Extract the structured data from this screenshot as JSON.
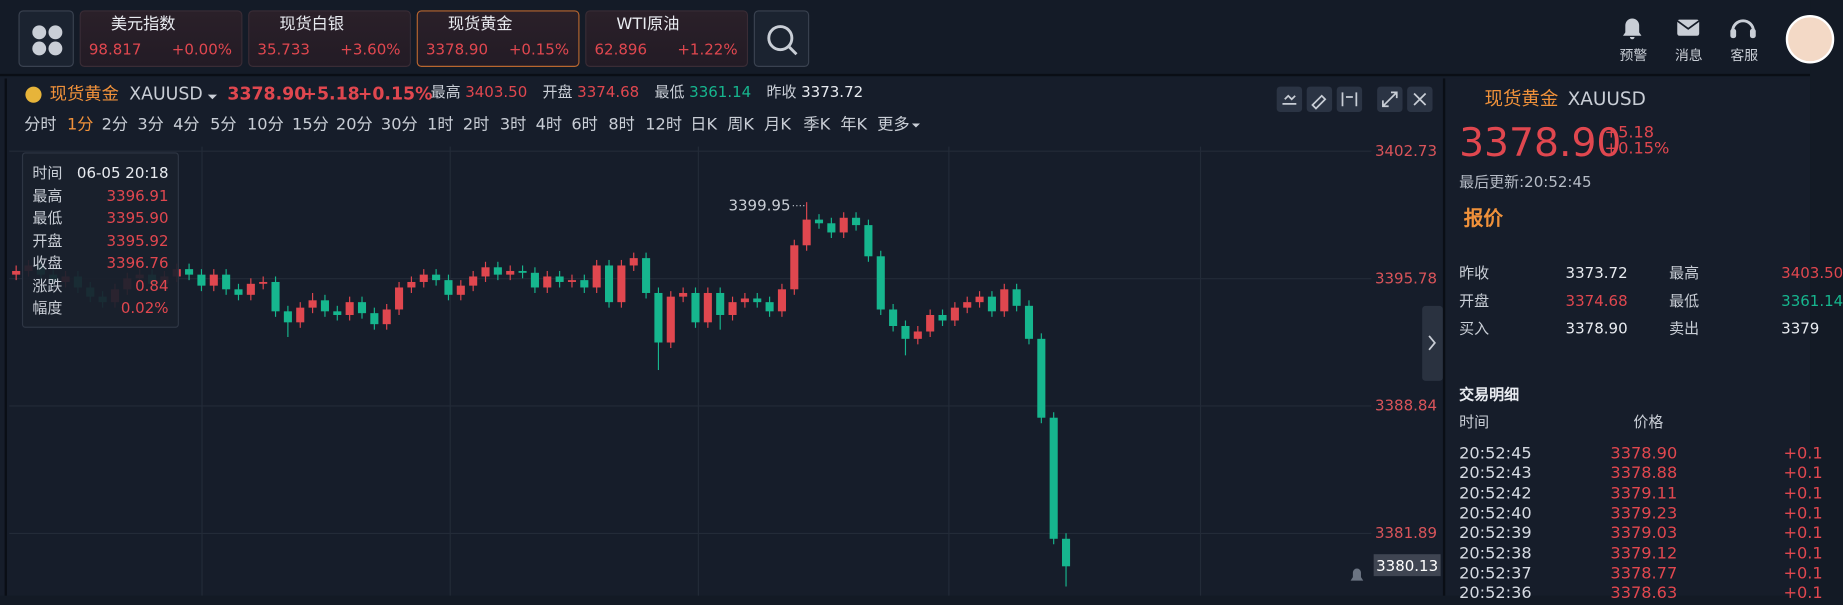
{
  "top_bar": {
    "tickers": [
      {
        "name": "美元指数",
        "price": "98.817",
        "change": "+0.00%"
      },
      {
        "name": "现货白银",
        "price": "35.733",
        "change": "+3.60%"
      },
      {
        "name": "现货黄金",
        "price": "3378.90",
        "change": "+0.15%"
      },
      {
        "name": "WTI原油",
        "price": "62.896",
        "change": "+1.22%"
      }
    ],
    "actions": [
      "预警",
      "消息",
      "客服"
    ]
  },
  "chart_header": {
    "name": "现货黄金",
    "code": "XAUUSD",
    "price": "3378.90",
    "change": "+5.18",
    "percent": "+0.15%",
    "stats": [
      {
        "label": "最高",
        "value": "3403.50"
      },
      {
        "label": "开盘",
        "value": "3374.68"
      },
      {
        "label": "最低",
        "value": "3361.14"
      },
      {
        "label": "昨收",
        "value": "3373.72"
      }
    ]
  },
  "periods": [
    "分时",
    "1分",
    "2分",
    "3分",
    "4分",
    "5分",
    "10分",
    "15分",
    "20分",
    "30分",
    "1时",
    "2时",
    "3时",
    "4时",
    "6时",
    "8时",
    "12时",
    "日K",
    "周K",
    "月K",
    "季K",
    "年K",
    "更多"
  ],
  "tooltip": [
    [
      "时间",
      "06-05 20:18"
    ],
    [
      "最高",
      "3396.91"
    ],
    [
      "最低",
      "3395.90"
    ],
    [
      "开盘",
      "3395.92"
    ],
    [
      "收盘",
      "3396.76"
    ],
    [
      "涨跌",
      "0.84"
    ],
    [
      "幅度",
      "0.02%"
    ]
  ],
  "chart_data": {
    "type": "candlestick",
    "up_color": "#e0474f",
    "down_color": "#16b68e",
    "ylim": [
      3378.5,
      3402.98
    ],
    "yticks": [
      3402.73,
      3395.78,
      3388.84,
      3381.89
    ],
    "grid": true,
    "max_label": "3399.95",
    "last_price": 3380.13,
    "candles": [
      [
        3396.0,
        3396.5,
        3395.7,
        3396.2
      ],
      [
        3396.2,
        3396.8,
        3395.9,
        3396.5
      ],
      [
        3396.5,
        3396.8,
        3395.7,
        3396.0
      ],
      [
        3396.0,
        3396.3,
        3395.3,
        3395.6
      ],
      [
        3395.6,
        3396.2,
        3395.3,
        3395.9
      ],
      [
        3395.9,
        3396.2,
        3395.0,
        3395.3
      ],
      [
        3395.3,
        3395.6,
        3394.5,
        3394.8
      ],
      [
        3394.8,
        3395.1,
        3394.2,
        3394.5
      ],
      [
        3394.5,
        3395.5,
        3394.2,
        3395.2
      ],
      [
        3395.2,
        3396.1,
        3394.9,
        3395.8
      ],
      [
        3395.8,
        3396.3,
        3395.5,
        3396.0
      ],
      [
        3396.0,
        3396.3,
        3395.2,
        3395.5
      ],
      [
        3395.5,
        3396.2,
        3395.2,
        3395.9
      ],
      [
        3395.9,
        3396.6,
        3395.6,
        3396.3
      ],
      [
        3396.3,
        3396.6,
        3395.7,
        3396.0
      ],
      [
        3396.0,
        3396.3,
        3395.1,
        3395.4
      ],
      [
        3395.4,
        3396.3,
        3395.1,
        3396.0
      ],
      [
        3396.0,
        3396.3,
        3394.9,
        3395.2
      ],
      [
        3395.2,
        3395.5,
        3394.6,
        3394.9
      ],
      [
        3394.9,
        3395.8,
        3394.6,
        3395.5
      ],
      [
        3395.5,
        3395.9,
        3395.2,
        3395.6
      ],
      [
        3395.6,
        3395.9,
        3393.7,
        3394.0
      ],
      [
        3394.0,
        3394.3,
        3392.6,
        3393.4
      ],
      [
        3393.4,
        3394.5,
        3393.1,
        3394.2
      ],
      [
        3394.2,
        3395.0,
        3393.9,
        3394.6
      ],
      [
        3394.6,
        3394.9,
        3393.7,
        3394.0
      ],
      [
        3394.0,
        3394.3,
        3393.5,
        3393.8
      ],
      [
        3393.8,
        3394.8,
        3393.5,
        3394.5
      ],
      [
        3394.5,
        3394.8,
        3393.6,
        3393.9
      ],
      [
        3393.9,
        3394.2,
        3393.0,
        3393.3
      ],
      [
        3393.3,
        3394.4,
        3393.0,
        3394.1
      ],
      [
        3394.1,
        3395.6,
        3393.8,
        3395.3
      ],
      [
        3395.3,
        3395.9,
        3395.0,
        3395.6
      ],
      [
        3395.6,
        3396.3,
        3395.3,
        3396.0
      ],
      [
        3396.0,
        3396.3,
        3395.4,
        3395.7
      ],
      [
        3395.7,
        3396.0,
        3394.6,
        3394.9
      ],
      [
        3394.9,
        3395.7,
        3394.6,
        3395.4
      ],
      [
        3395.4,
        3396.2,
        3395.1,
        3395.9
      ],
      [
        3395.9,
        3396.7,
        3395.6,
        3396.4
      ],
      [
        3396.4,
        3396.7,
        3395.7,
        3396.0
      ],
      [
        3396.0,
        3396.5,
        3395.7,
        3396.2
      ],
      [
        3396.2,
        3396.5,
        3395.8,
        3396.1
      ],
      [
        3396.1,
        3396.4,
        3395.0,
        3395.3
      ],
      [
        3395.3,
        3396.2,
        3395.0,
        3395.9
      ],
      [
        3395.9,
        3396.2,
        3395.3,
        3395.6
      ],
      [
        3395.6,
        3396.0,
        3395.3,
        3395.7
      ],
      [
        3395.7,
        3396.0,
        3395.0,
        3395.3
      ],
      [
        3395.3,
        3396.8,
        3395.0,
        3396.5
      ],
      [
        3396.5,
        3396.8,
        3394.2,
        3394.5
      ],
      [
        3394.5,
        3396.8,
        3394.2,
        3396.5
      ],
      [
        3396.5,
        3397.2,
        3396.2,
        3396.9
      ],
      [
        3396.9,
        3397.2,
        3394.7,
        3395.0
      ],
      [
        3395.0,
        3395.3,
        3390.8,
        3392.3
      ],
      [
        3392.3,
        3395.1,
        3392.0,
        3394.8
      ],
      [
        3394.8,
        3395.3,
        3394.5,
        3395.0
      ],
      [
        3395.0,
        3395.3,
        3393.1,
        3393.4
      ],
      [
        3393.4,
        3395.3,
        3393.1,
        3395.0
      ],
      [
        3395.0,
        3395.3,
        3393.0,
        3393.8
      ],
      [
        3393.8,
        3394.8,
        3393.5,
        3394.5
      ],
      [
        3394.5,
        3395.0,
        3394.2,
        3394.7
      ],
      [
        3394.7,
        3395.0,
        3394.2,
        3394.5
      ],
      [
        3394.5,
        3394.8,
        3393.7,
        3394.0
      ],
      [
        3394.0,
        3395.5,
        3393.7,
        3395.2
      ],
      [
        3395.2,
        3397.9,
        3394.9,
        3397.6
      ],
      [
        3397.6,
        3399.95,
        3397.3,
        3399.0
      ],
      [
        3399.0,
        3399.3,
        3398.5,
        3398.8
      ],
      [
        3398.8,
        3399.1,
        3398.0,
        3398.3
      ],
      [
        3398.3,
        3399.4,
        3398.0,
        3399.1
      ],
      [
        3399.1,
        3399.4,
        3398.4,
        3398.7
      ],
      [
        3398.7,
        3399.0,
        3396.7,
        3397.0
      ],
      [
        3397.0,
        3397.3,
        3393.8,
        3394.1
      ],
      [
        3394.1,
        3394.4,
        3392.9,
        3393.2
      ],
      [
        3393.2,
        3393.5,
        3391.6,
        3392.5
      ],
      [
        3392.5,
        3393.2,
        3392.2,
        3392.9
      ],
      [
        3392.9,
        3394.1,
        3392.6,
        3393.8
      ],
      [
        3393.8,
        3394.1,
        3393.2,
        3393.5
      ],
      [
        3393.5,
        3394.5,
        3393.2,
        3394.2
      ],
      [
        3394.2,
        3394.8,
        3393.9,
        3394.5
      ],
      [
        3394.5,
        3395.1,
        3394.2,
        3394.8
      ],
      [
        3394.8,
        3395.1,
        3393.7,
        3394.0
      ],
      [
        3394.0,
        3395.5,
        3393.7,
        3395.2
      ],
      [
        3395.2,
        3395.5,
        3394.0,
        3394.3
      ],
      [
        3394.3,
        3394.6,
        3392.2,
        3392.5
      ],
      [
        3392.5,
        3392.8,
        3387.9,
        3388.2
      ],
      [
        3388.2,
        3388.5,
        3381.3,
        3381.6
      ],
      [
        3381.6,
        3381.9,
        3379.0,
        3380.1
      ]
    ]
  },
  "side_panel": {
    "name": "现货黄金",
    "code": "XAUUSD",
    "price": "3378.90",
    "change": "+5.18",
    "percent": "+0.15%",
    "updated": "最后更新:20:52:45",
    "tab": "报价",
    "quotes": [
      [
        {
          "label": "昨收",
          "value": "3373.72"
        },
        {
          "label": "最高",
          "value": "3403.50"
        }
      ],
      [
        {
          "label": "开盘",
          "value": "3374.68"
        },
        {
          "label": "最低",
          "value": "3361.14"
        }
      ],
      [
        {
          "label": "买入",
          "value": "3378.90"
        },
        {
          "label": "卖出",
          "value": "3379"
        }
      ]
    ],
    "trades_title": "交易明细",
    "trades_header": [
      "时间",
      "价格"
    ],
    "trades": [
      [
        "20:52:45",
        "3378.90",
        "+0.1"
      ],
      [
        "20:52:43",
        "3378.88",
        "+0.1"
      ],
      [
        "20:52:42",
        "3379.11",
        "+0.1"
      ],
      [
        "20:52:40",
        "3379.23",
        "+0.1"
      ],
      [
        "20:52:39",
        "3379.03",
        "+0.1"
      ],
      [
        "20:52:38",
        "3379.12",
        "+0.1"
      ],
      [
        "20:52:37",
        "3378.77",
        "+0.1"
      ],
      [
        "20:52:36",
        "3378.63",
        "+0.1"
      ]
    ]
  }
}
